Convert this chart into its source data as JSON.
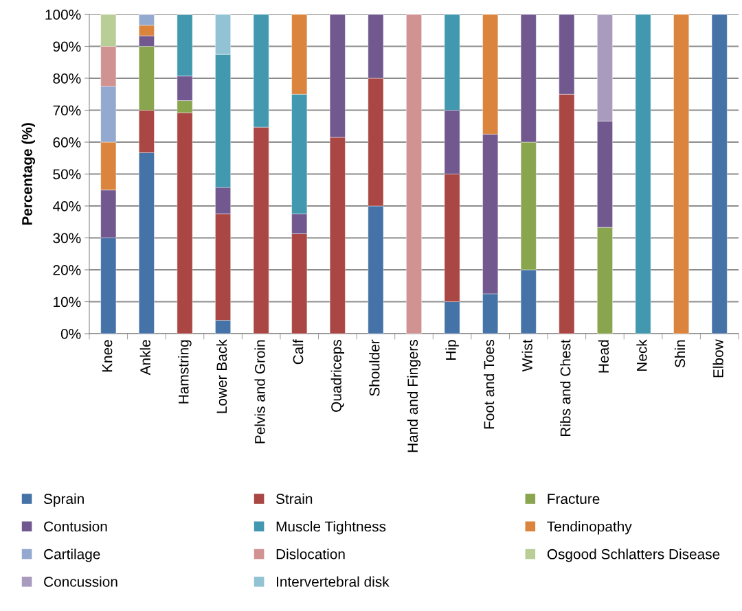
{
  "chart_data": {
    "type": "bar",
    "stacked": true,
    "ylabel": "Percentage (%)",
    "categories": [
      "Knee",
      "Ankle",
      "Hamstring",
      "Lower Back",
      "Pelvis and Groin",
      "Calf",
      "Quadriceps",
      "Shoulder",
      "Hand and Fingers",
      "Hip",
      "Foot and Toes",
      "Wrist",
      "Ribs and Chest",
      "Head",
      "Neck",
      "Shin",
      "Elbow"
    ],
    "series": [
      {
        "name": "Sprain",
        "color": "#4572a7",
        "values": [
          30,
          56.7,
          null,
          4.2,
          null,
          null,
          null,
          40,
          null,
          10,
          12.5,
          20,
          null,
          null,
          null,
          null,
          100
        ]
      },
      {
        "name": "Strain",
        "color": "#aa4643",
        "values": [
          null,
          13.3,
          69.2,
          33.3,
          64.7,
          31.3,
          61.5,
          40,
          null,
          40,
          null,
          null,
          75,
          null,
          null,
          null,
          null
        ]
      },
      {
        "name": "Fracture",
        "color": "#89a54e",
        "values": [
          null,
          20,
          3.8,
          null,
          null,
          null,
          null,
          null,
          null,
          null,
          null,
          40,
          null,
          33.3,
          null,
          null,
          null
        ]
      },
      {
        "name": "Contusion",
        "color": "#71588f",
        "values": [
          15,
          3.3,
          7.7,
          8.3,
          null,
          6.2,
          38.5,
          20,
          null,
          20,
          50,
          40,
          25,
          33.3,
          null,
          null,
          null
        ]
      },
      {
        "name": "Muscle Tightness",
        "color": "#4198af",
        "values": [
          null,
          null,
          19.2,
          41.7,
          35.3,
          37.5,
          null,
          null,
          null,
          30,
          null,
          null,
          null,
          null,
          100,
          null,
          null
        ]
      },
      {
        "name": "Tendinopathy",
        "color": "#db843d",
        "values": [
          15,
          3.3,
          null,
          null,
          null,
          25,
          null,
          null,
          null,
          null,
          37.5,
          null,
          null,
          null,
          null,
          100,
          null
        ]
      },
      {
        "name": "Cartilage",
        "color": "#93a9cf",
        "values": [
          17.5,
          3.3,
          null,
          null,
          null,
          null,
          null,
          null,
          null,
          null,
          null,
          null,
          null,
          null,
          null,
          null,
          null
        ]
      },
      {
        "name": "Dislocation",
        "color": "#d19392",
        "values": [
          12.5,
          null,
          null,
          null,
          null,
          null,
          null,
          null,
          100,
          null,
          null,
          null,
          null,
          null,
          null,
          null,
          null
        ]
      },
      {
        "name": "Osgood Schlatters Disease",
        "color": "#b9cd96",
        "values": [
          10,
          null,
          null,
          null,
          null,
          null,
          null,
          null,
          null,
          null,
          null,
          null,
          null,
          null,
          null,
          null,
          null
        ]
      },
      {
        "name": "Concussion",
        "color": "#a99bbd",
        "values": [
          null,
          null,
          null,
          null,
          null,
          null,
          null,
          null,
          null,
          null,
          null,
          null,
          null,
          33.3,
          null,
          null,
          null
        ]
      },
      {
        "name": "Intervertebral disk",
        "color": "#92c3d4",
        "values": [
          null,
          null,
          null,
          12.5,
          null,
          null,
          null,
          null,
          null,
          null,
          null,
          null,
          null,
          null,
          null,
          null,
          null
        ]
      }
    ],
    "ylim": [
      0,
      100
    ],
    "yticks": [
      {
        "value": 0,
        "label": "0%"
      },
      {
        "value": 10,
        "label": "10%"
      },
      {
        "value": 20,
        "label": "20%"
      },
      {
        "value": 30,
        "label": "30%"
      },
      {
        "value": 40,
        "label": "40%"
      },
      {
        "value": 50,
        "label": "50%"
      },
      {
        "value": 60,
        "label": "60%"
      },
      {
        "value": 70,
        "label": "70%"
      },
      {
        "value": 80,
        "label": "80%"
      },
      {
        "value": 90,
        "label": "90%"
      },
      {
        "value": 100,
        "label": "100%"
      }
    ],
    "grid": "y",
    "legend": "bottom"
  }
}
